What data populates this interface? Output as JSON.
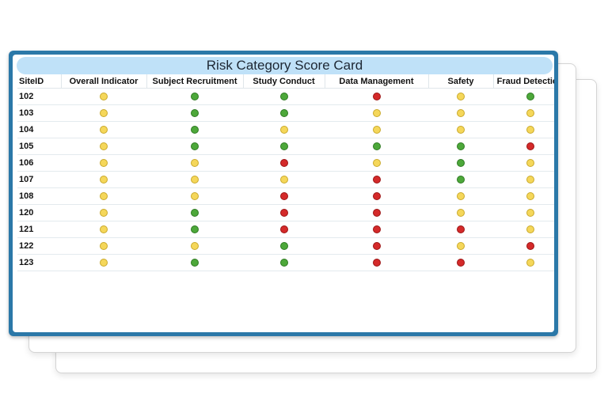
{
  "title": "Risk Category Score Card",
  "colors": {
    "green": "#4da83a",
    "yellow": "#f5d75a",
    "red": "#d42a2a",
    "frame": "#2b78a8",
    "title_bar": "#bfe1f8"
  },
  "columns": [
    "SiteID",
    "Overall Indicator",
    "Subject Recruitment",
    "Study Conduct",
    "Data Management",
    "Safety",
    "Fraud Detection"
  ],
  "rows": [
    {
      "site": "102",
      "status": [
        "yellow",
        "green",
        "green",
        "red",
        "yellow",
        "green"
      ]
    },
    {
      "site": "103",
      "status": [
        "yellow",
        "green",
        "green",
        "yellow",
        "yellow",
        "yellow"
      ]
    },
    {
      "site": "104",
      "status": [
        "yellow",
        "green",
        "yellow",
        "yellow",
        "yellow",
        "yellow"
      ]
    },
    {
      "site": "105",
      "status": [
        "yellow",
        "green",
        "green",
        "green",
        "green",
        "red"
      ]
    },
    {
      "site": "106",
      "status": [
        "yellow",
        "yellow",
        "red",
        "yellow",
        "green",
        "yellow"
      ]
    },
    {
      "site": "107",
      "status": [
        "yellow",
        "yellow",
        "yellow",
        "red",
        "green",
        "yellow"
      ]
    },
    {
      "site": "108",
      "status": [
        "yellow",
        "yellow",
        "red",
        "red",
        "yellow",
        "yellow"
      ]
    },
    {
      "site": "120",
      "status": [
        "yellow",
        "green",
        "red",
        "red",
        "yellow",
        "yellow"
      ]
    },
    {
      "site": "121",
      "status": [
        "yellow",
        "green",
        "red",
        "red",
        "red",
        "yellow"
      ]
    },
    {
      "site": "122",
      "status": [
        "yellow",
        "yellow",
        "green",
        "red",
        "yellow",
        "red"
      ]
    },
    {
      "site": "123",
      "status": [
        "yellow",
        "green",
        "green",
        "red",
        "red",
        "yellow"
      ]
    }
  ]
}
